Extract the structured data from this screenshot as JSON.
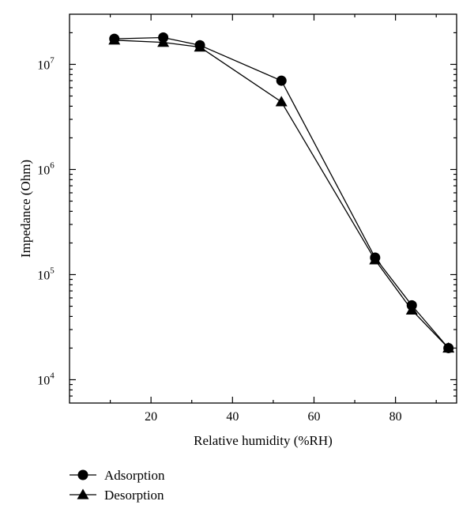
{
  "chart_data": {
    "type": "line",
    "title": "",
    "xlabel": "Relative humidity (%RH)",
    "ylabel": "Impedance (Ohm)",
    "xlim": [
      0,
      95
    ],
    "ylim": [
      6000,
      30000000
    ],
    "y_scale": "log",
    "grid": false,
    "legend_position": "bottom-left, below plot",
    "x_ticks": [
      20,
      40,
      60,
      80
    ],
    "y_ticks": [
      {
        "value": 10000,
        "base": "10",
        "exp": "4"
      },
      {
        "value": 100000,
        "base": "10",
        "exp": "5"
      },
      {
        "value": 1000000,
        "base": "10",
        "exp": "6"
      },
      {
        "value": 10000000,
        "base": "10",
        "exp": "7"
      }
    ],
    "series": [
      {
        "name": "Adsorption",
        "marker": "circle",
        "color": "#000000",
        "x": [
          11,
          23,
          32,
          52,
          75,
          84,
          93
        ],
        "y": [
          17500000,
          18000000,
          15200000,
          7000000,
          145000,
          51000,
          20000
        ]
      },
      {
        "name": "Desorption",
        "marker": "triangle",
        "color": "#000000",
        "x": [
          11,
          23,
          32,
          52,
          75,
          84,
          93
        ],
        "y": [
          17000000,
          16200000,
          14600000,
          4400000,
          138000,
          46000,
          20000
        ]
      }
    ]
  }
}
